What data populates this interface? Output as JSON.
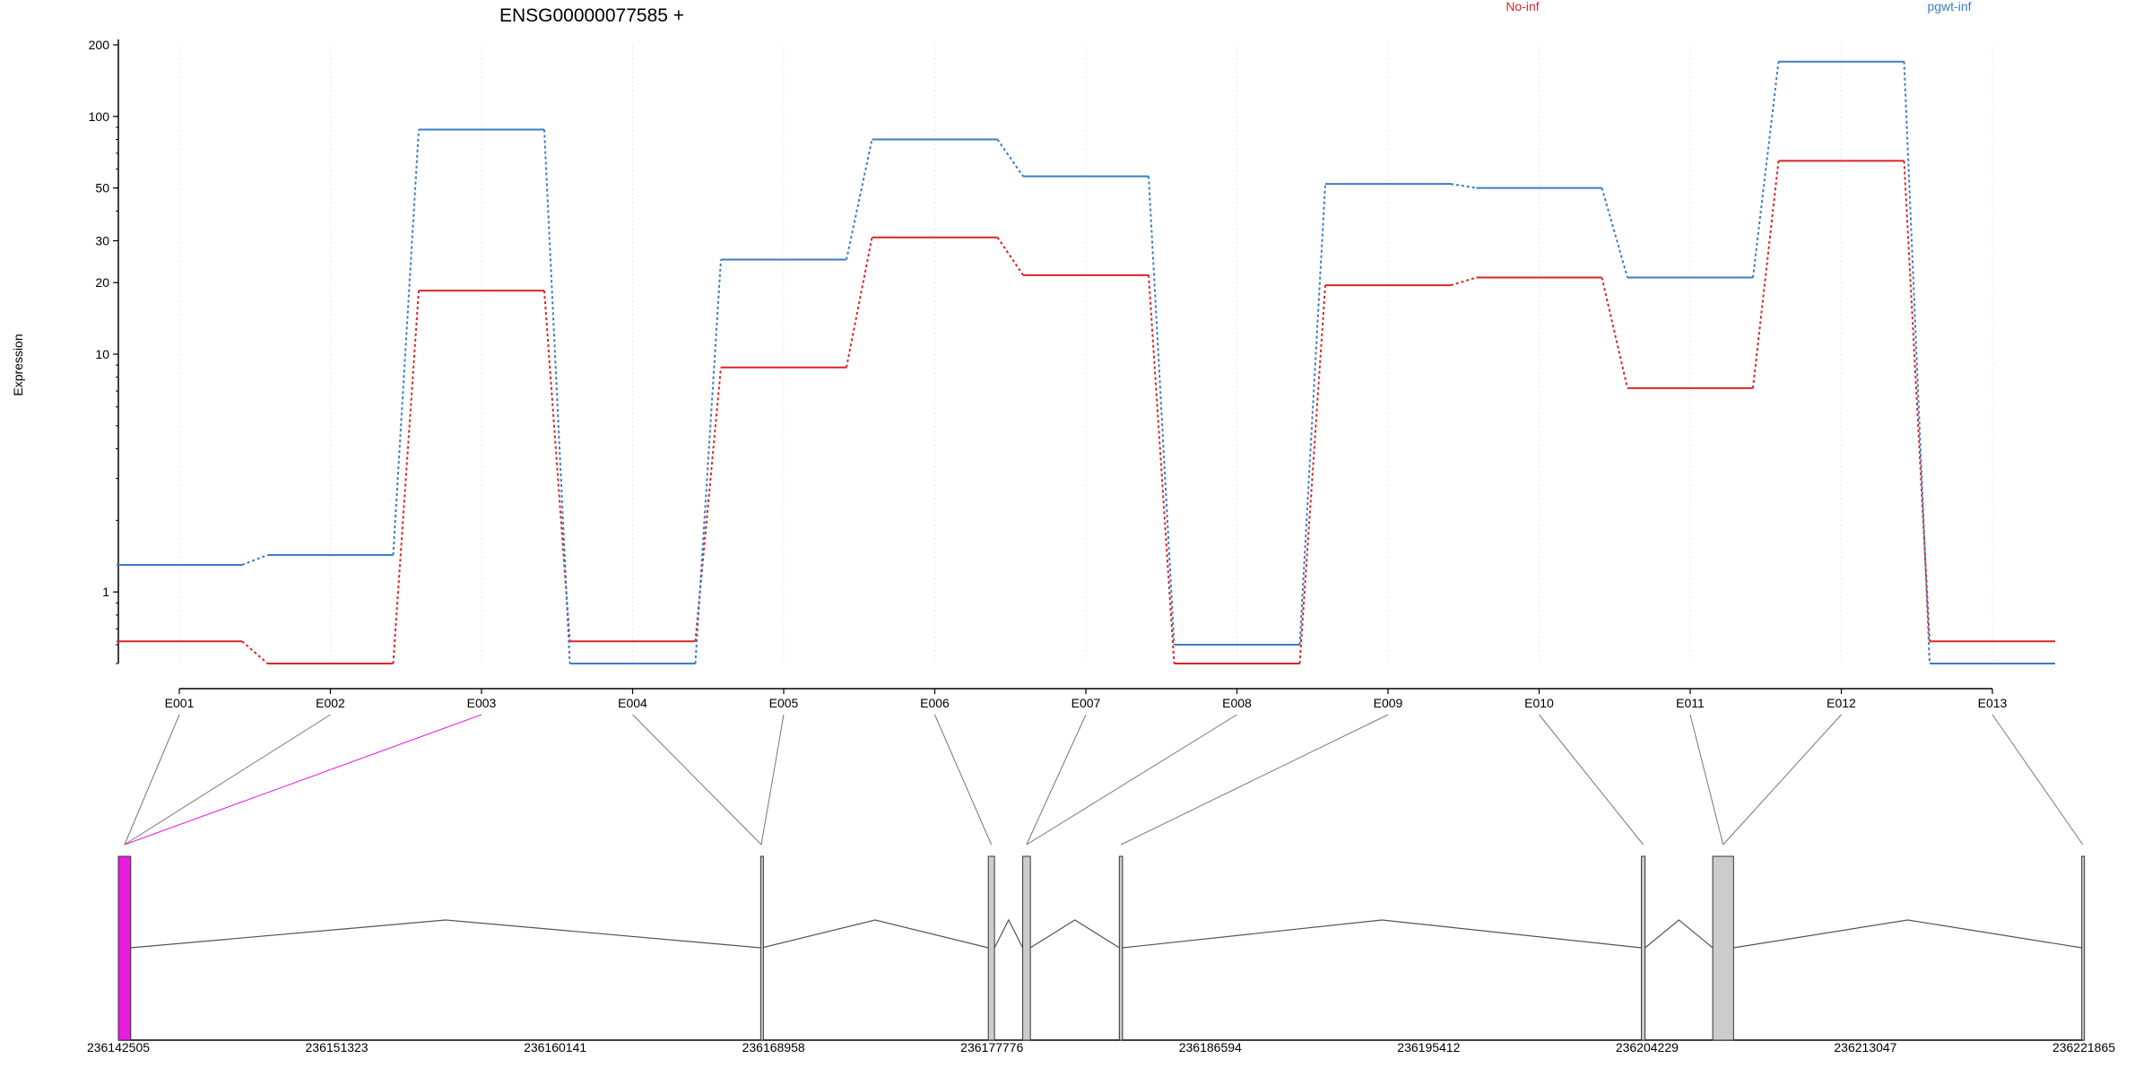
{
  "title": "ENSG00000077585 +",
  "legend": [
    {
      "label": "No-inf",
      "color": "#d62728"
    },
    {
      "label": "pgwt-inf",
      "color": "#3a7dc6"
    }
  ],
  "colors": {
    "highlight": "#e81de0",
    "exon_fill": "#cccccc",
    "axis": "#000000",
    "grid": "#e8e8e8"
  },
  "chart_data": {
    "type": "line",
    "title": "ENSG00000077585 +",
    "ylabel": "Expression",
    "xlabel": "",
    "yscale": "log",
    "ylim": [
      0.5,
      200
    ],
    "yticks": [
      1,
      10,
      20,
      30,
      50,
      100,
      200
    ],
    "grid": true,
    "legend_position": "top-right",
    "categories": [
      "E001",
      "E002",
      "E003",
      "E004",
      "E005",
      "E006",
      "E007",
      "E008",
      "E009",
      "E010",
      "E011",
      "E012",
      "E013"
    ],
    "series": [
      {
        "name": "No-inf",
        "color": "#d62728",
        "values": [
          0.62,
          0.5,
          18.5,
          0.62,
          8.8,
          31,
          21.5,
          0.5,
          19.5,
          21,
          7.2,
          65,
          0.62
        ]
      },
      {
        "name": "pgwt-inf",
        "color": "#3a7dc6",
        "values": [
          1.3,
          1.43,
          88,
          0.5,
          25,
          80,
          56,
          0.6,
          52,
          50,
          21,
          170,
          0.5
        ]
      }
    ],
    "highlighted_exon": "E003",
    "gene_model": {
      "coord_range": [
        236142505,
        236221865
      ],
      "coord_ticks": [
        236142505,
        236151323,
        236160141,
        236168958,
        236177776,
        236186594,
        236195412,
        236204229,
        236213047,
        236221865
      ],
      "exons": [
        {
          "start": 236142505,
          "end": 236143005,
          "highlight": true
        },
        {
          "start": 236168440,
          "end": 236168490,
          "highlight": false
        },
        {
          "start": 236177630,
          "end": 236177880,
          "highlight": false
        },
        {
          "start": 236179020,
          "end": 236179330,
          "highlight": false
        },
        {
          "start": 236182920,
          "end": 236183050,
          "highlight": false
        },
        {
          "start": 236204000,
          "end": 236204150,
          "highlight": false
        },
        {
          "start": 236206880,
          "end": 236207720,
          "highlight": false
        },
        {
          "start": 236221780,
          "end": 236221865,
          "highlight": false
        }
      ],
      "exon_bin_links": [
        0,
        0,
        0,
        1,
        1,
        2,
        3,
        3,
        4,
        5,
        6,
        6,
        7
      ]
    }
  }
}
